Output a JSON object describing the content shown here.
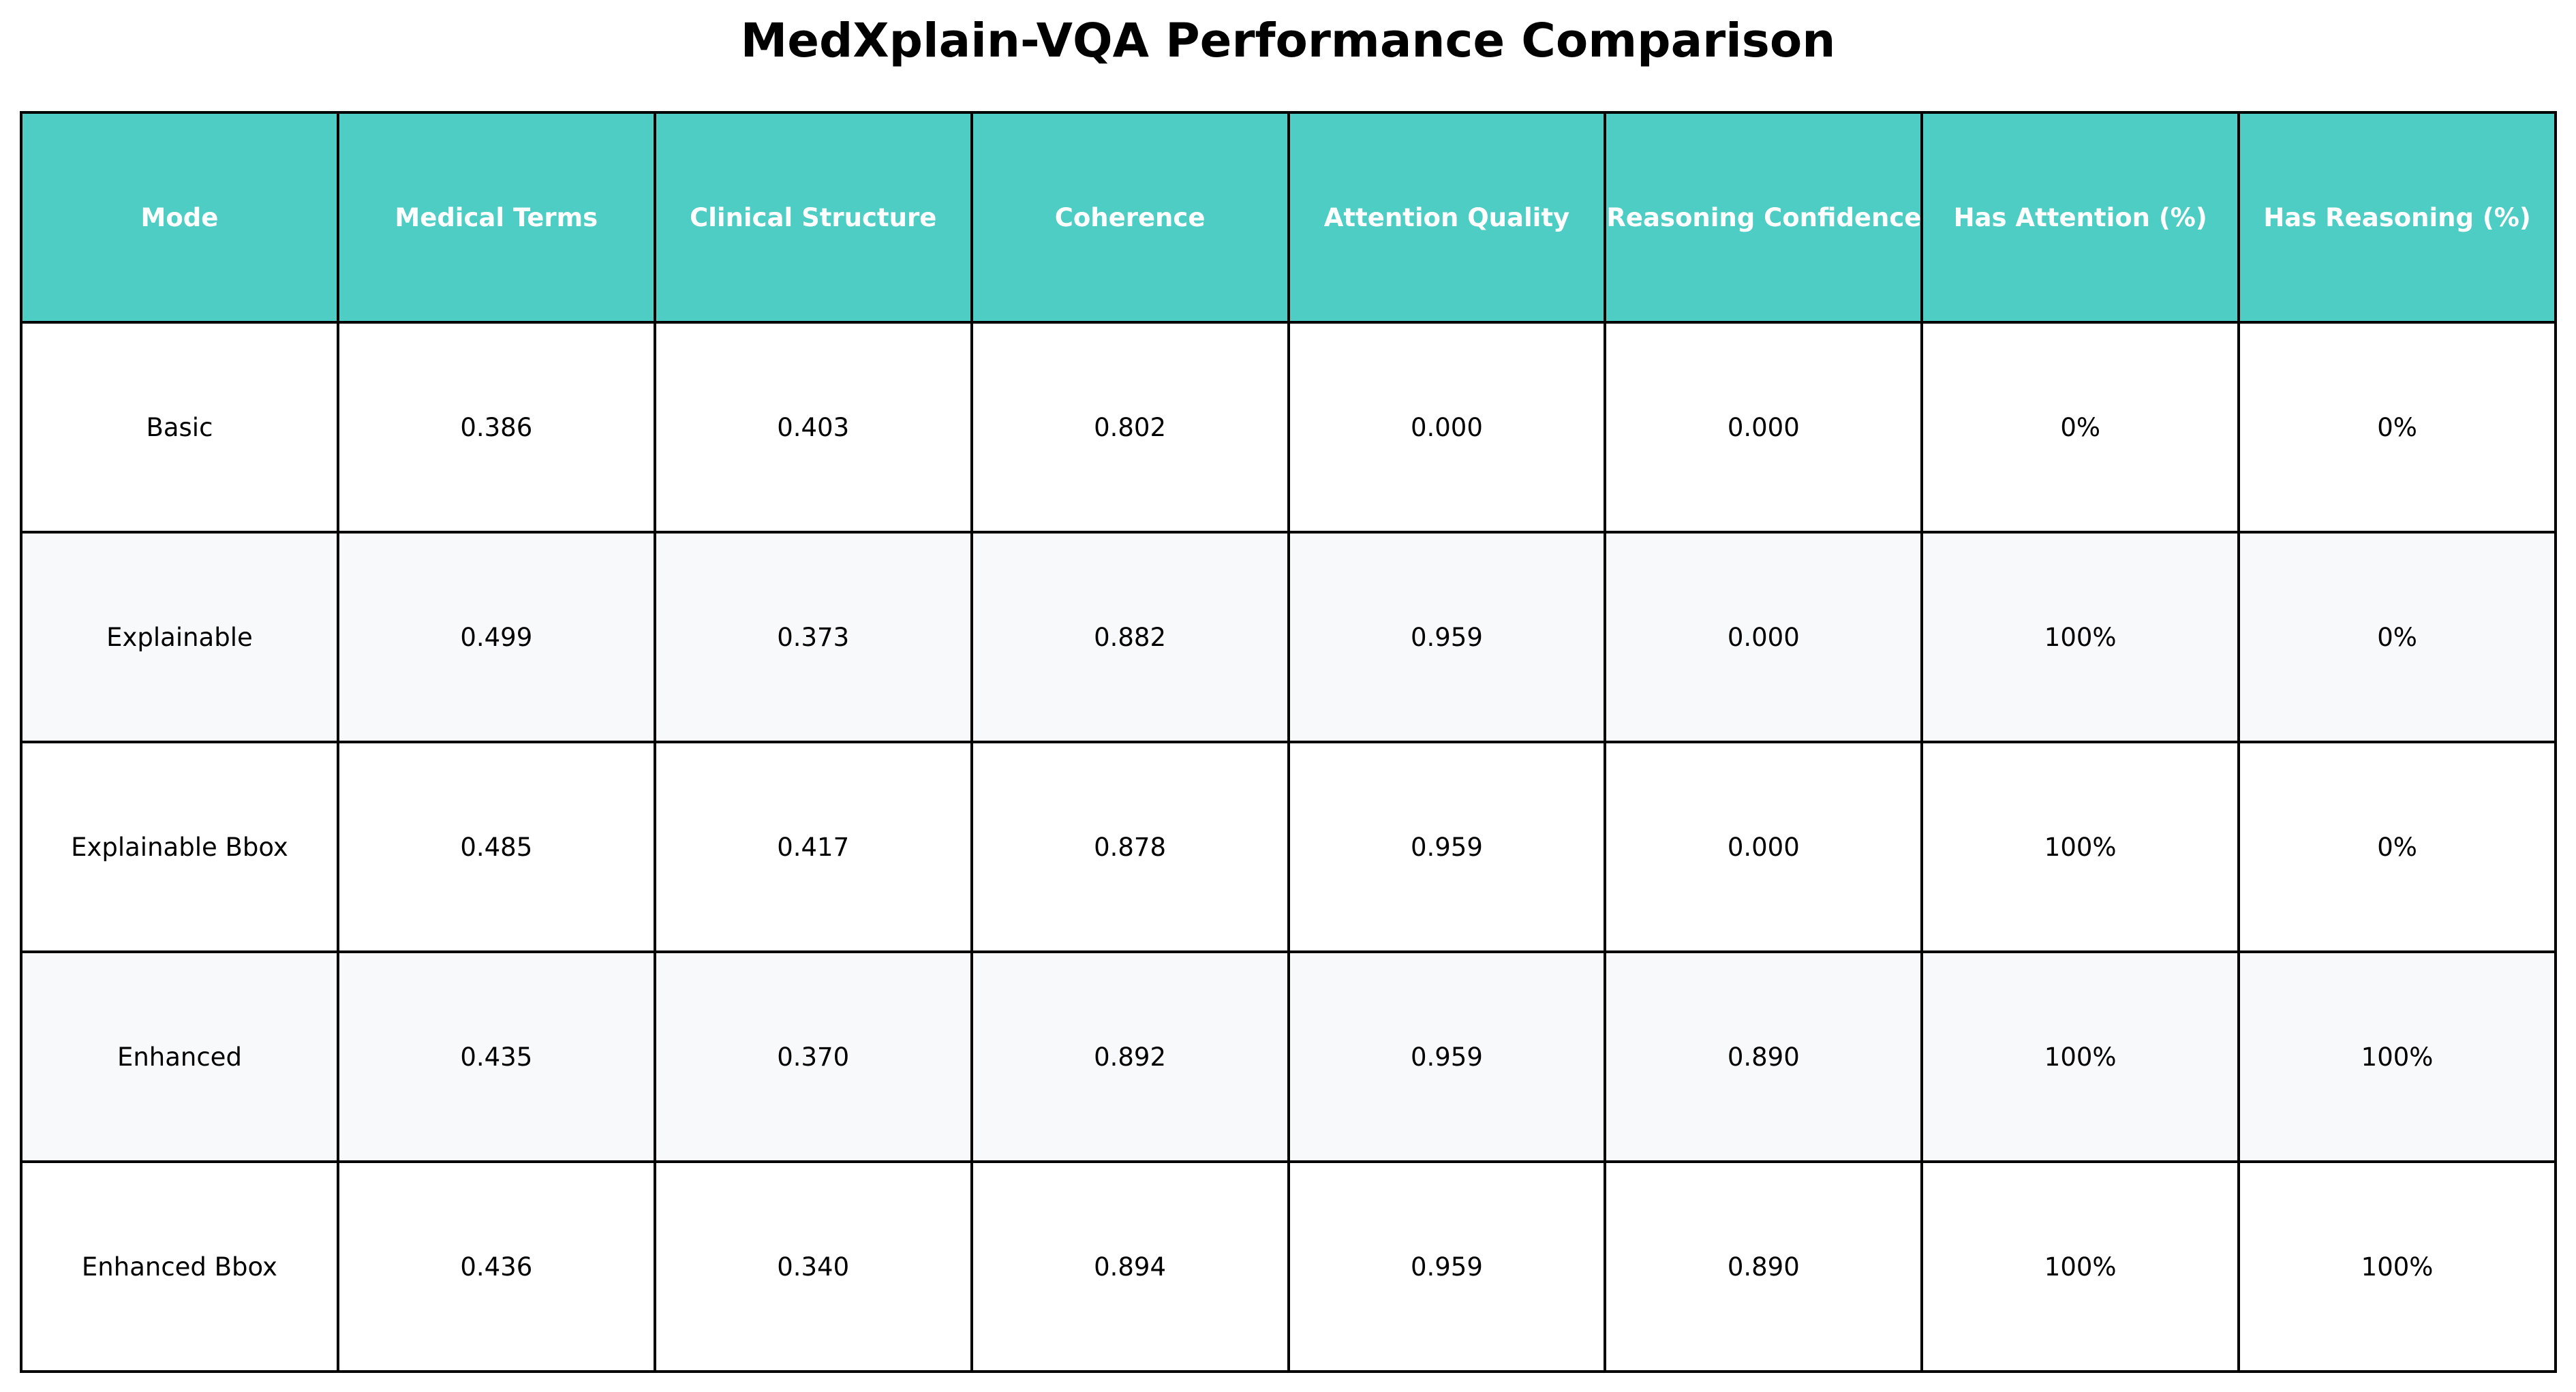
{
  "chart_data": {
    "type": "table",
    "title": "MedXplain-VQA Performance Comparison",
    "columns": [
      "Mode",
      "Medical Terms",
      "Clinical Structure",
      "Coherence",
      "Attention Quality",
      "Reasoning Confidence",
      "Has Attention (%)",
      "Has Reasoning (%)"
    ],
    "rows": [
      [
        "Basic",
        "0.386",
        "0.403",
        "0.802",
        "0.000",
        "0.000",
        "0%",
        "0%"
      ],
      [
        "Explainable",
        "0.499",
        "0.373",
        "0.882",
        "0.959",
        "0.000",
        "100%",
        "0%"
      ],
      [
        "Explainable Bbox",
        "0.485",
        "0.417",
        "0.878",
        "0.959",
        "0.000",
        "100%",
        "0%"
      ],
      [
        "Enhanced",
        "0.435",
        "0.370",
        "0.892",
        "0.959",
        "0.890",
        "100%",
        "100%"
      ],
      [
        "Enhanced Bbox",
        "0.436",
        "0.340",
        "0.894",
        "0.959",
        "0.890",
        "100%",
        "100%"
      ]
    ],
    "header_color": "#4ecdc4",
    "row_colors": [
      "#ffffff",
      "#f8f9fa"
    ]
  }
}
